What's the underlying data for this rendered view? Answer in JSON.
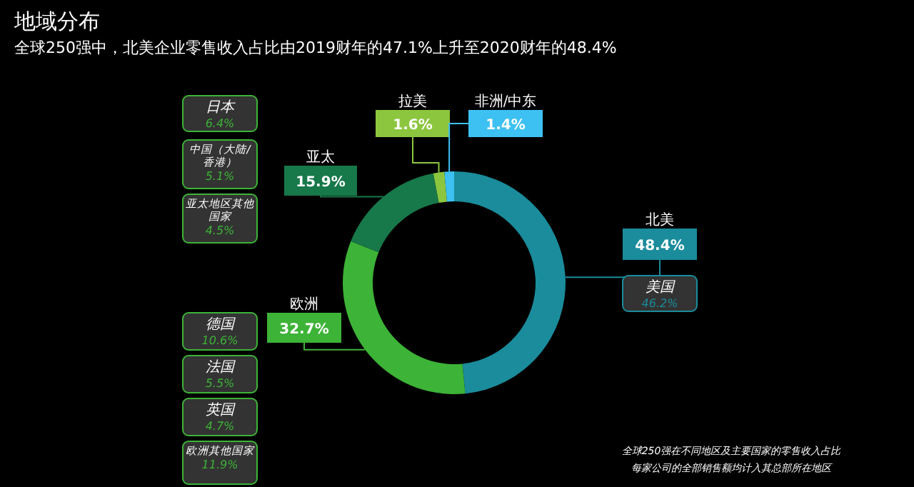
{
  "chart_data": {
    "type": "donut",
    "title": "地域分布",
    "subtitle": "全球250强中，北美企业零售收入占比由2019财年的47.1%上升至2020财年的48.4%",
    "categories": [
      "北美",
      "欧洲",
      "亚太",
      "拉美",
      "非洲/中东"
    ],
    "values": [
      48.4,
      32.7,
      15.9,
      1.6,
      1.4
    ],
    "colors": [
      "#1a8c9c",
      "#3db337",
      "#17784a",
      "#8cc63f",
      "#3dc1f2"
    ],
    "value_labels": [
      "48.4%",
      "32.7%",
      "15.9%",
      "1.6%",
      "1.4%"
    ],
    "annotations": [
      "日本\n6.4%",
      "中国（大陆/香港）\n5.1%",
      "亚太地区其他国家\n4.5%",
      "美国\n46.2%",
      "德国\n10.6%",
      "法国\n5.5%",
      "英国\n4.7%",
      "欧洲其他国家\n11.9%",
      "全球250强在不同地区及主要国家的零售收入占比",
      "每家公司的全部销售额均计入其总部所在地区"
    ]
  }
}
